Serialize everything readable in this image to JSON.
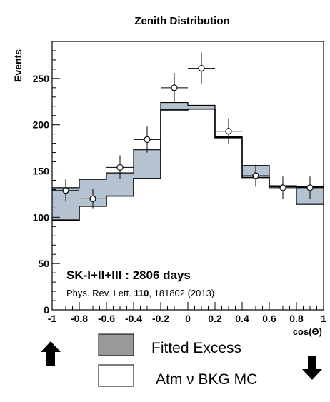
{
  "chart_data": {
    "type": "histogram",
    "title": "Zenith Distribution",
    "xlabel": "cos(Θ)",
    "ylabel": "Events",
    "xlim": [
      -1,
      1
    ],
    "ylim": [
      0,
      290
    ],
    "xticks": [
      -1,
      -0.8,
      -0.6,
      -0.4,
      -0.2,
      0,
      0.2,
      0.4,
      0.6,
      0.8,
      1
    ],
    "xtick_labels": [
      "-1",
      "-0.8",
      "-0.6",
      "-0.4",
      "-0.2",
      "0",
      "0.2",
      "0.4",
      "0.6",
      "0.8",
      "1"
    ],
    "yticks": [
      0,
      50,
      100,
      150,
      200,
      250
    ],
    "ytick_labels": [
      "0",
      "50",
      "100",
      "150",
      "200",
      "250"
    ],
    "bin_edges": [
      -1,
      -0.8,
      -0.6,
      -0.4,
      -0.2,
      0,
      0.2,
      0.4,
      0.6,
      0.8,
      1
    ],
    "series": [
      {
        "name": "Fitted Excess",
        "style": "filled",
        "color": "#b4c3cf",
        "values": [
          97,
          112,
          123,
          142,
          216,
          217,
          186,
          143,
          134,
          133
        ]
      },
      {
        "name": "Atm ν BKG MC",
        "style": "step",
        "color": "#000000",
        "values": [
          132,
          141,
          148,
          173,
          224,
          221,
          187,
          156,
          133,
          114
        ]
      },
      {
        "name": "Data",
        "style": "points",
        "x": [
          -0.9,
          -0.7,
          -0.5,
          -0.3,
          -0.1,
          0.1,
          0.3,
          0.5,
          0.7,
          0.9
        ],
        "y": [
          129,
          120,
          154,
          184,
          240,
          261,
          193,
          145,
          132,
          132
        ],
        "xerr": [
          0.1,
          0.1,
          0.1,
          0.1,
          0.1,
          0.1,
          0.1,
          0.1,
          0.1,
          0.1
        ],
        "yerr": [
          12,
          11,
          13,
          14,
          16,
          17,
          14,
          12,
          12,
          12
        ]
      }
    ],
    "annotations": {
      "line1": "SK-I+II+III : 2806 days",
      "line2_prefix": "Phys. Rev. Lett. ",
      "line2_bold": "110",
      "line2_suffix": ", 181802 (2013)"
    },
    "legend": {
      "position": "bottom",
      "items": [
        {
          "label": "Fitted Excess",
          "swatch": "#999999"
        },
        {
          "label": "Atm ν BKG MC",
          "swatch": "#ffffff"
        }
      ]
    },
    "arrows": [
      "up-arrow",
      "down-arrow"
    ]
  }
}
